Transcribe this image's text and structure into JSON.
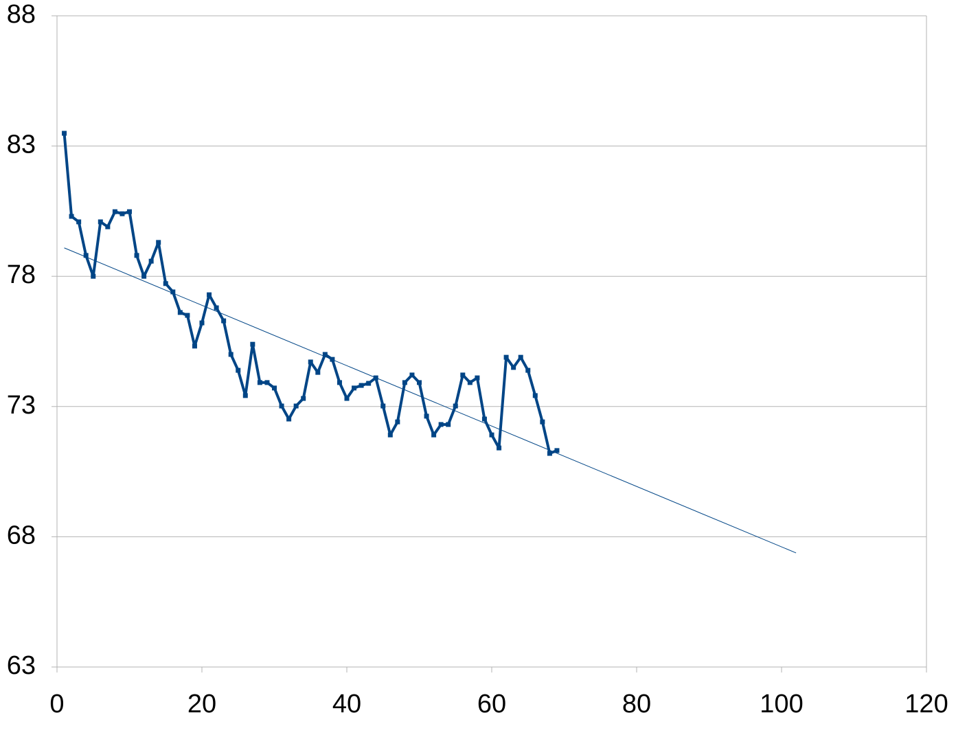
{
  "chart_data": {
    "type": "scatter",
    "xlim": [
      0,
      120
    ],
    "xticks": [
      0,
      20,
      40,
      60,
      80,
      100,
      120
    ],
    "ylim": [
      63,
      88
    ],
    "yticks": [
      63,
      68,
      73,
      78,
      83,
      88
    ],
    "grid": true,
    "series": [
      {
        "color": "#004586",
        "x": [
          1,
          2,
          3,
          4,
          5,
          6,
          7,
          8,
          9,
          10,
          11,
          12,
          13,
          14,
          15,
          16,
          17,
          18,
          19,
          20,
          21,
          22,
          23,
          24,
          25,
          26,
          27,
          28,
          29,
          30,
          31,
          32,
          33,
          34,
          35,
          36,
          37,
          38,
          39,
          40,
          41,
          42,
          43,
          44,
          45,
          46,
          47,
          48,
          49,
          50,
          51,
          52,
          53,
          54,
          55,
          56,
          57,
          58,
          59,
          60,
          61,
          62,
          63,
          64,
          65,
          66,
          67,
          68,
          69
        ],
        "values": [
          83.49,
          80.3,
          80.09,
          78.8,
          78.0,
          80.09,
          79.9,
          80.48,
          80.4,
          80.48,
          78.8,
          78.0,
          78.58,
          79.3,
          77.72,
          77.4,
          76.61,
          76.5,
          75.32,
          76.21,
          77.29,
          76.79,
          76.29,
          75.0,
          74.39,
          73.42,
          75.39,
          73.92,
          73.92,
          73.71,
          73.02,
          72.52,
          73.02,
          73.31,
          74.71,
          74.31,
          75.0,
          74.81,
          73.92,
          73.31,
          73.71,
          73.81,
          73.89,
          74.1,
          73.02,
          71.91,
          72.41,
          73.92,
          74.21,
          73.92,
          72.63,
          71.91,
          72.31,
          72.31,
          73.02,
          74.21,
          73.92,
          74.1,
          72.52,
          71.91,
          71.41,
          74.89,
          74.5,
          74.89,
          74.39,
          73.42,
          72.41,
          71.2,
          71.31
        ]
      }
    ],
    "trendline": {
      "color": "#004586",
      "x": [
        1,
        102
      ],
      "values": [
        79.09,
        67.38
      ]
    }
  }
}
